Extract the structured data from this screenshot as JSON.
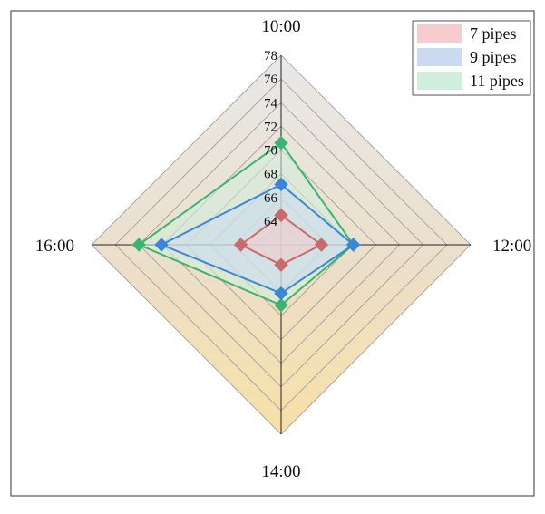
{
  "chart_data": {
    "type": "radar",
    "axes": [
      "10:00",
      "12:00",
      "14:00",
      "16:00"
    ],
    "rlim": [
      62,
      78
    ],
    "ticks": [
      64,
      66,
      68,
      70,
      72,
      74,
      76,
      78
    ],
    "legend": {
      "position": "top-right"
    },
    "series": [
      {
        "name": "7 pipes",
        "values": [
          64.5,
          65.4,
          63.7,
          65.4
        ],
        "color": "#c96b6b",
        "fill": "#f6cccc"
      },
      {
        "name": "9 pipes",
        "values": [
          67.1,
          68.1,
          66.1,
          72.1
        ],
        "color": "#3b86d6",
        "fill": "#c9daf2"
      },
      {
        "name": "11 pipes",
        "values": [
          70.6,
          68.1,
          67.1,
          74.0
        ],
        "color": "#3cb371",
        "fill": "#cfeedd"
      }
    ]
  }
}
